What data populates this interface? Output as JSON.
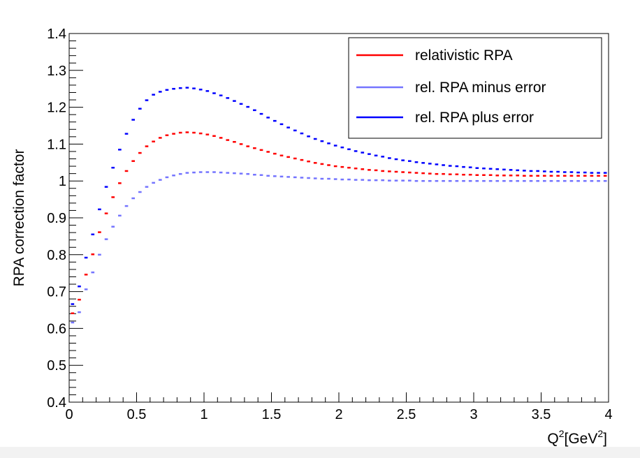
{
  "chart_data": {
    "type": "line",
    "style": "histogram-steps",
    "title": "",
    "ylabel": "RPA correction factor",
    "xlabel_main": "Q",
    "xlabel_sup1": "2",
    "xlabel_bracket_open": "[GeV",
    "xlabel_sup2": "2",
    "xlabel_bracket_close": "]",
    "xlim": [
      0,
      4
    ],
    "ylim": [
      0.4,
      1.4
    ],
    "x_ticks": [
      "0",
      "0.5",
      "1",
      "1.5",
      "2",
      "2.5",
      "3",
      "3.5",
      "4"
    ],
    "y_ticks": [
      "0.4",
      "0.5",
      "0.6",
      "0.7",
      "0.8",
      "0.9",
      "1",
      "1.1",
      "1.2",
      "1.3",
      "1.4"
    ],
    "legend_position": "top-right",
    "bin_width": 0.05,
    "x": [
      0.025,
      0.075,
      0.125,
      0.175,
      0.225,
      0.275,
      0.325,
      0.375,
      0.425,
      0.475,
      0.525,
      0.575,
      0.625,
      0.675,
      0.725,
      0.775,
      0.825,
      0.875,
      0.925,
      0.975,
      1.025,
      1.075,
      1.125,
      1.175,
      1.225,
      1.275,
      1.325,
      1.375,
      1.425,
      1.475,
      1.525,
      1.575,
      1.625,
      1.675,
      1.725,
      1.775,
      1.825,
      1.875,
      1.925,
      1.975,
      2.025,
      2.075,
      2.125,
      2.175,
      2.225,
      2.275,
      2.325,
      2.375,
      2.425,
      2.475,
      2.525,
      2.575,
      2.625,
      2.675,
      2.725,
      2.775,
      2.825,
      2.875,
      2.925,
      2.975,
      3.025,
      3.075,
      3.125,
      3.175,
      3.225,
      3.275,
      3.325,
      3.375,
      3.425,
      3.475,
      3.525,
      3.575,
      3.625,
      3.675,
      3.725,
      3.775,
      3.825,
      3.875,
      3.925,
      3.975
    ],
    "series": [
      {
        "name": "relativistic RPA",
        "color": "#ff0000",
        "values": [
          0.641,
          0.678,
          0.746,
          0.801,
          0.861,
          0.912,
          0.956,
          0.994,
          1.027,
          1.054,
          1.076,
          1.094,
          1.107,
          1.117,
          1.124,
          1.128,
          1.131,
          1.132,
          1.131,
          1.129,
          1.126,
          1.122,
          1.117,
          1.111,
          1.106,
          1.1,
          1.094,
          1.089,
          1.084,
          1.079,
          1.074,
          1.069,
          1.065,
          1.061,
          1.057,
          1.053,
          1.049,
          1.046,
          1.043,
          1.04,
          1.038,
          1.036,
          1.034,
          1.032,
          1.03,
          1.029,
          1.027,
          1.026,
          1.025,
          1.024,
          1.023,
          1.022,
          1.021,
          1.02,
          1.019,
          1.019,
          1.018,
          1.018,
          1.017,
          1.017,
          1.016,
          1.016,
          1.016,
          1.015,
          1.015,
          1.015,
          1.015,
          1.014,
          1.014,
          1.014,
          1.014,
          1.014,
          1.014,
          1.014,
          1.014,
          1.014,
          1.014,
          1.014,
          1.014,
          1.014
        ]
      },
      {
        "name": "rel. RPA minus error",
        "color": "#7474ff",
        "values": [
          0.616,
          0.644,
          0.706,
          0.752,
          0.8,
          0.842,
          0.876,
          0.906,
          0.932,
          0.953,
          0.97,
          0.984,
          0.995,
          1.003,
          1.01,
          1.015,
          1.019,
          1.022,
          1.023,
          1.024,
          1.024,
          1.024,
          1.023,
          1.022,
          1.021,
          1.02,
          1.019,
          1.017,
          1.016,
          1.014,
          1.013,
          1.012,
          1.011,
          1.01,
          1.009,
          1.008,
          1.007,
          1.006,
          1.006,
          1.005,
          1.004,
          1.004,
          1.003,
          1.003,
          1.002,
          1.002,
          1.002,
          1.001,
          1.001,
          1.001,
          1.001,
          1.0,
          1.0,
          1.0,
          1.0,
          1.0,
          1.0,
          1.0,
          1.0,
          1.0,
          1.0,
          1.0,
          1.0,
          1.0,
          1.0,
          1.0,
          1.0,
          1.0,
          1.0,
          1.0,
          1.0,
          1.0,
          1.0,
          1.0,
          1.0,
          1.0,
          1.0,
          1.0,
          1.0,
          1.0
        ]
      },
      {
        "name": "rel. RPA plus error",
        "color": "#0000ff",
        "values": [
          0.666,
          0.714,
          0.792,
          0.855,
          0.923,
          0.984,
          1.036,
          1.085,
          1.128,
          1.166,
          1.196,
          1.219,
          1.234,
          1.242,
          1.247,
          1.25,
          1.252,
          1.253,
          1.251,
          1.248,
          1.244,
          1.238,
          1.232,
          1.225,
          1.217,
          1.209,
          1.201,
          1.192,
          1.182,
          1.172,
          1.163,
          1.154,
          1.145,
          1.137,
          1.129,
          1.121,
          1.114,
          1.108,
          1.102,
          1.096,
          1.091,
          1.086,
          1.081,
          1.077,
          1.073,
          1.069,
          1.066,
          1.062,
          1.059,
          1.056,
          1.054,
          1.051,
          1.049,
          1.047,
          1.045,
          1.043,
          1.041,
          1.04,
          1.038,
          1.037,
          1.035,
          1.034,
          1.033,
          1.032,
          1.031,
          1.03,
          1.029,
          1.028,
          1.027,
          1.027,
          1.026,
          1.025,
          1.025,
          1.024,
          1.024,
          1.023,
          1.023,
          1.022,
          1.022,
          1.022
        ]
      }
    ]
  }
}
